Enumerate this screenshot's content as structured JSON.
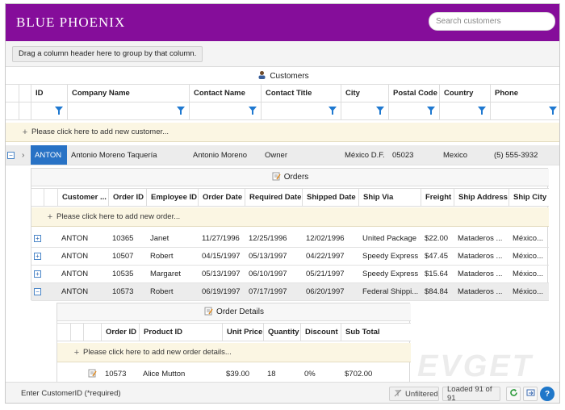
{
  "app": {
    "title": "BLUE PHOENIX"
  },
  "search": {
    "placeholder": "Search customers"
  },
  "group_area": {
    "label": "Drag a column header here to group by that column."
  },
  "customers": {
    "band_title": "Customers",
    "columns": [
      "ID",
      "Company Name",
      "Contact Name",
      "Contact Title",
      "City",
      "Postal Code",
      "Country",
      "Phone"
    ],
    "add_row": "Please click here to add new customer...",
    "rows": [
      {
        "id": "ANTON",
        "company": "Antonio Moreno Taquería",
        "contact": "Antonio Moreno",
        "title": "Owner",
        "city": "México D.F.",
        "postal": "05023",
        "country": "Mexico",
        "phone": "(5) 555-3932"
      }
    ]
  },
  "orders": {
    "band_title": "Orders",
    "columns": [
      "Customer ...",
      "Order ID",
      "Employee ID",
      "Order Date",
      "Required Date",
      "Shipped Date",
      "Ship Via",
      "Freight",
      "Ship Address",
      "Ship City"
    ],
    "add_row": "Please click here to add new order...",
    "rows": [
      {
        "customer": "ANTON",
        "order_id": "10365",
        "employee": "Janet",
        "order_date": "11/27/1996",
        "required": "12/25/1996",
        "shipped": "12/02/1996",
        "ship_via": "United Package",
        "freight": "$22.00",
        "address": "Mataderos ...",
        "city": "México..."
      },
      {
        "customer": "ANTON",
        "order_id": "10507",
        "employee": "Robert",
        "order_date": "04/15/1997",
        "required": "05/13/1997",
        "shipped": "04/22/1997",
        "ship_via": "Speedy Express",
        "freight": "$47.45",
        "address": "Mataderos ...",
        "city": "México..."
      },
      {
        "customer": "ANTON",
        "order_id": "10535",
        "employee": "Margaret",
        "order_date": "05/13/1997",
        "required": "06/10/1997",
        "shipped": "05/21/1997",
        "ship_via": "Speedy Express",
        "freight": "$15.64",
        "address": "Mataderos ...",
        "city": "México..."
      },
      {
        "customer": "ANTON",
        "order_id": "10573",
        "employee": "Robert",
        "order_date": "06/19/1997",
        "required": "07/17/1997",
        "shipped": "06/20/1997",
        "ship_via": "Federal Shippi...",
        "freight": "$84.84",
        "address": "Mataderos ...",
        "city": "México..."
      }
    ]
  },
  "order_details": {
    "band_title": "Order Details",
    "columns": [
      "Order ID",
      "Product ID",
      "Unit Price",
      "Quantity",
      "Discount",
      "Sub Total"
    ],
    "add_row": "Please click here to add new order details...",
    "rows": [
      {
        "order_id": "10573",
        "product": "Alice Mutton",
        "unit_price": "$39.00",
        "quantity": "18",
        "discount": "0%",
        "sub_total": "$702.00"
      }
    ]
  },
  "footer": {
    "status": "Enter CustomerID (*required)",
    "filter_label": "Unfiltered",
    "loaded": "Loaded 91 of 91"
  },
  "watermark": "EVGET",
  "colors": {
    "header_bg": "#850d9a",
    "accent": "#1e78d0",
    "selected": "#2872c5",
    "add_row_bg": "#fbf6e3"
  }
}
